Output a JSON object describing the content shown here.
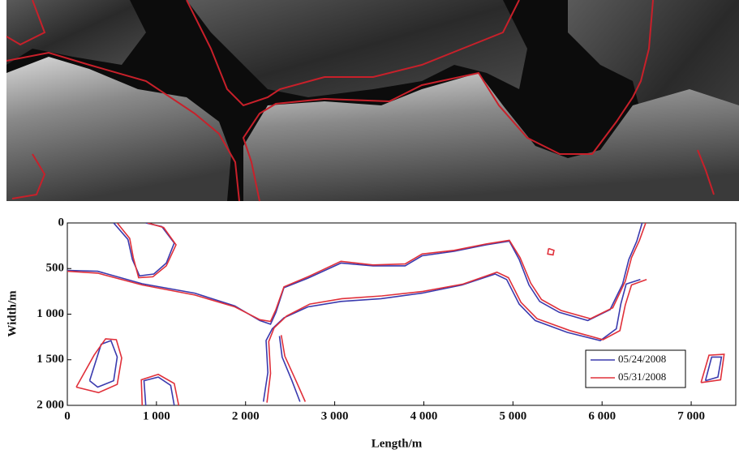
{
  "chart_data": {
    "type": "line",
    "xlabel": "Length/m",
    "ylabel": "Width/m",
    "xlim": [
      0,
      7500
    ],
    "ylim": [
      0,
      2000
    ],
    "y_inverted": true,
    "xticks": [
      0,
      {
        "value": 1000,
        "label": "1 000"
      },
      {
        "value": 2000,
        "label": "2 000"
      },
      {
        "value": 3000,
        "label": "3 000"
      },
      {
        "value": 4000,
        "label": "4 000"
      },
      {
        "value": 5000,
        "label": "5 000"
      },
      {
        "value": 6000,
        "label": "6 000"
      },
      {
        "value": 7000,
        "label": "7 000"
      }
    ],
    "yticks": [
      0,
      500,
      {
        "value": 1000,
        "label": "1 000"
      },
      {
        "value": 1500,
        "label": "1 500"
      },
      {
        "value": 2000,
        "label": "2 000"
      }
    ],
    "legend": "lower right",
    "series": [
      {
        "name": "05/24/2008",
        "color": "#3a3aae",
        "x": [
          0,
          340,
          840,
          1430,
          1880,
          2160,
          2280,
          2340,
          2430,
          2700,
          3070,
          3430,
          3790,
          3980,
          4340,
          4700,
          4960,
          5070,
          5180,
          5300,
          5520,
          5840,
          6090,
          6230,
          6300,
          6390,
          6450,
          null,
          520,
          680,
          730,
          810,
          970,
          1110,
          1200,
          1060,
          880,
          null,
          2200,
          2250,
          2230,
          2300,
          2430,
          2700,
          3070,
          3520,
          3980,
          4430,
          4800,
          4930,
          5070,
          5250,
          5610,
          5980,
          6160,
          6210,
          6270,
          6430,
          null,
          2610,
          2520,
          2410,
          2380,
          null,
          250,
          380,
          490,
          560,
          520,
          340,
          250,
          null,
          880,
          860,
          1020,
          1160,
          1200,
          null,
          7160,
          7230,
          7340,
          7300,
          7160
        ],
        "values": [
          520,
          530,
          667,
          770,
          910,
          1070,
          1110,
          980,
          710,
          605,
          440,
          470,
          470,
          360,
          311,
          240,
          200,
          400,
          680,
          860,
          980,
          1070,
          950,
          670,
          400,
          200,
          0,
          null,
          0,
          180,
          400,
          580,
          560,
          440,
          220,
          40,
          0,
          null,
          1960,
          1640,
          1290,
          1160,
          1040,
          920,
          860,
          830,
          770,
          680,
          560,
          620,
          890,
          1070,
          1200,
          1290,
          1160,
          890,
          670,
          620,
          null,
          1960,
          1730,
          1470,
          1240,
          null,
          1730,
          1330,
          1290,
          1470,
          1730,
          1800,
          1730,
          null,
          2000,
          1730,
          1690,
          1780,
          2000,
          null,
          1730,
          1470,
          1470,
          1690,
          1730
        ]
      },
      {
        "name": "05/31/2008",
        "color": "#e0303a",
        "x": [
          0,
          340,
          840,
          1430,
          1880,
          2160,
          2280,
          2340,
          2430,
          2700,
          3070,
          3430,
          3790,
          3980,
          4340,
          4700,
          4960,
          5080,
          5200,
          5320,
          5540,
          5870,
          6120,
          6260,
          6330,
          6420,
          6490,
          null,
          560,
          700,
          740,
          800,
          960,
          1110,
          1220,
          1080,
          900,
          null,
          2240,
          2280,
          2260,
          2320,
          2460,
          2720,
          3080,
          3530,
          3990,
          4440,
          4820,
          4950,
          5090,
          5270,
          5640,
          6010,
          6200,
          6260,
          6330,
          6500,
          null,
          2670,
          2570,
          2440,
          2400,
          null,
          100,
          300,
          430,
          550,
          610,
          560,
          350,
          100,
          null,
          840,
          830,
          1020,
          1200,
          1250,
          null,
          7110,
          7200,
          7370,
          7330,
          7110,
          null,
          5400,
          5460,
          5450,
          5390,
          5400
        ],
        "values": [
          530,
          550,
          680,
          790,
          920,
          1060,
          1080,
          950,
          700,
          590,
          420,
          460,
          450,
          340,
          300,
          230,
          190,
          380,
          660,
          840,
          960,
          1050,
          930,
          640,
          380,
          190,
          0,
          null,
          0,
          170,
          380,
          600,
          590,
          470,
          240,
          50,
          0,
          null,
          1970,
          1650,
          1300,
          1150,
          1020,
          890,
          830,
          800,
          750,
          670,
          540,
          600,
          870,
          1050,
          1180,
          1280,
          1180,
          900,
          680,
          620,
          null,
          1960,
          1740,
          1460,
          1230,
          null,
          1800,
          1450,
          1270,
          1280,
          1480,
          1770,
          1860,
          1800,
          null,
          2000,
          1720,
          1660,
          1760,
          2000,
          null,
          1750,
          1450,
          1440,
          1720,
          1750,
          null,
          280,
          300,
          350,
          340,
          280
        ]
      }
    ]
  }
}
